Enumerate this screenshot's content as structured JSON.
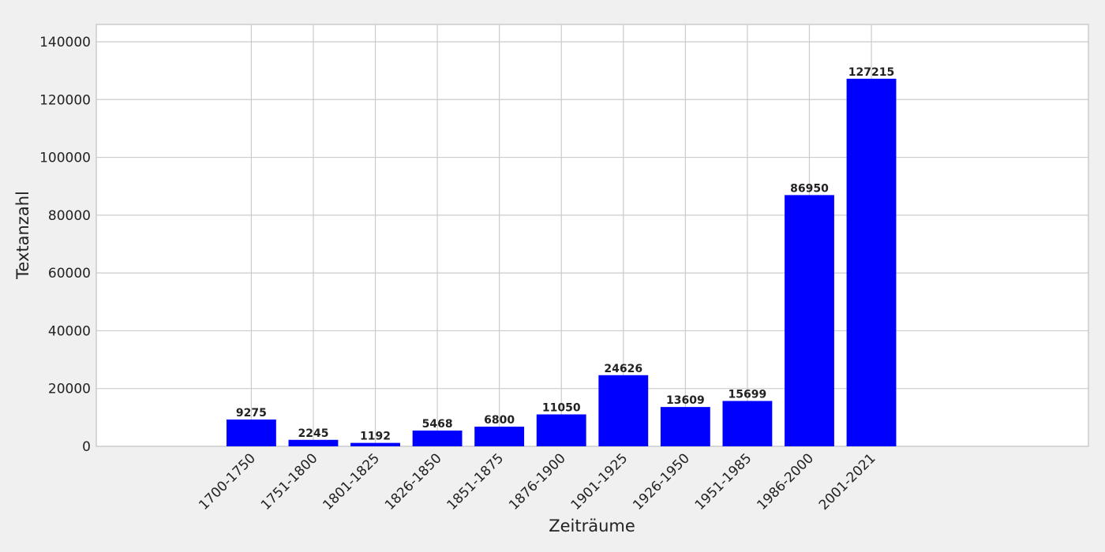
{
  "chart_data": {
    "type": "bar",
    "categories": [
      "1700-1750",
      "1751-1800",
      "1801-1825",
      "1826-1850",
      "1851-1875",
      "1876-1900",
      "1901-1925",
      "1926-1950",
      "1951-1985",
      "1986-2000",
      "2001-2021"
    ],
    "values": [
      9275,
      2245,
      1192,
      5468,
      6800,
      11050,
      24626,
      13609,
      15699,
      86950,
      127215
    ],
    "data_labels": [
      "9275",
      "2245",
      "1192",
      "5468",
      "6800",
      "11050",
      "24626",
      "13609",
      "15699",
      "86950",
      "127215"
    ],
    "xlabel": "Zeiträume",
    "ylabel": "Textanzahl",
    "ylim": [
      0,
      146000
    ],
    "yticks": [
      0,
      20000,
      40000,
      60000,
      80000,
      100000,
      120000,
      140000
    ],
    "ytick_labels": [
      "0",
      "20000",
      "40000",
      "60000",
      "80000",
      "100000",
      "120000",
      "140000"
    ],
    "xlim": [
      -2.5,
      13.5
    ],
    "grid": true,
    "colors": {
      "bar": "#0000ff",
      "background": "#f0f0f0",
      "plot_background": "#ffffff",
      "grid": "#cbcbcb"
    }
  }
}
